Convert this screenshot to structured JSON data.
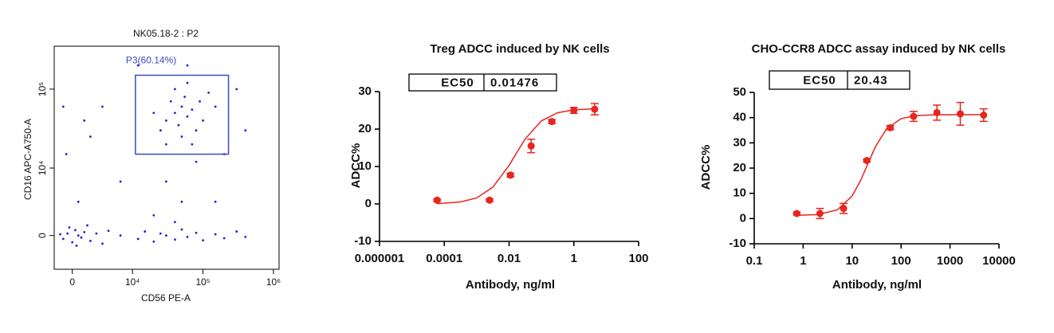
{
  "chart_data": [
    {
      "type": "flow",
      "title": "NK05.18-2 : P2",
      "xlabel": "CD56 PE-A",
      "ylabel": "CD16 APC-A750-A",
      "xscale": "biex",
      "yscale": "biex",
      "color": "#1f1fd6",
      "xlim": [
        -3000,
        1200000
      ],
      "ylim": [
        -5000,
        350000
      ],
      "xticks": [
        0,
        {
          "value": 10000,
          "label": "10⁴"
        },
        {
          "value": 100000,
          "label": "10⁵"
        },
        {
          "value": 1000000,
          "label": "10⁶"
        }
      ],
      "yticks": [
        0,
        {
          "value": 10000,
          "label": "10⁴"
        },
        {
          "value": 100000,
          "label": "10⁵"
        }
      ],
      "gate": {
        "label": "P3(60.14%)",
        "color": "#3b4bc8",
        "x": [
          11000,
          230000
        ],
        "y": [
          15000,
          150000
        ]
      },
      "x": [
        -1500,
        -800,
        0,
        500,
        1000,
        1500,
        2000,
        -500,
        3000,
        4000,
        5000,
        6000,
        8000,
        12000,
        15000,
        20000,
        25000,
        30000,
        40000,
        50000,
        60000,
        80000,
        100000,
        150000,
        200000,
        300000,
        400000,
        -2000,
        700,
        2500,
        30000,
        40000,
        50000,
        60000,
        45000,
        70000,
        35000,
        55000,
        25000,
        80000,
        90000,
        40000,
        60000,
        20000,
        100000,
        150000,
        50000,
        30000,
        120000,
        70000,
        30000,
        50000,
        20000,
        80000,
        40000,
        -1000,
        2000,
        5000,
        8000,
        1000,
        200000,
        400000,
        300000,
        12000,
        60000,
        -1500,
        3000,
        150000
      ],
      "values": [
        -500,
        300,
        -1000,
        800,
        0,
        -300,
        500,
        1200,
        -800,
        300,
        -1200,
        700,
        0,
        -500,
        600,
        -900,
        300,
        0,
        -600,
        900,
        -200,
        400,
        -700,
        200,
        -400,
        600,
        -200,
        200,
        -1500,
        1500,
        40000,
        50000,
        60000,
        45000,
        35000,
        55000,
        70000,
        80000,
        30000,
        30000,
        70000,
        100000,
        120000,
        50000,
        40000,
        60000,
        25000,
        20000,
        90000,
        20000,
        8000,
        5000,
        3000,
        12000,
        2000,
        15000,
        40000,
        60000,
        8000,
        5000,
        15000,
        30000,
        100000,
        200000,
        200000,
        60000,
        25000,
        5000
      ]
    },
    {
      "type": "dose",
      "title": "Treg ADCC induced by NK cells",
      "xlabel": "Antibody, ng/ml",
      "ylabel": "ADCC%",
      "xscale": "log",
      "color": "#e8251f",
      "ec50": {
        "label": "EC50",
        "value": 0.01476
      },
      "xlim": [
        1e-06,
        100
      ],
      "ylim": [
        -10,
        30
      ],
      "xticks": [
        1e-06,
        0.0001,
        0.01,
        1,
        100
      ],
      "yticks": [
        -10,
        0,
        10,
        20,
        30
      ],
      "x": [
        6e-05,
        0.0025,
        0.011,
        0.048,
        0.21,
        1,
        4.4
      ],
      "values": [
        1,
        1,
        7.7,
        15.5,
        22,
        25,
        25.3
      ],
      "errors": [
        0.3,
        0.3,
        0.5,
        1.8,
        0.5,
        0.8,
        1.5
      ],
      "fit": {
        "x": [
          6e-05,
          0.000316,
          0.001,
          0.00316,
          0.01,
          0.01476,
          0.0316,
          0.1,
          0.316,
          1,
          4.4
        ],
        "y": [
          0.06,
          0.53,
          1.6,
          4.49,
          10.28,
          12.75,
          17.38,
          22.2,
          24.36,
          25.13,
          25.42
        ]
      }
    },
    {
      "type": "dose",
      "title": "CHO-CCR8 ADCC assay induced by NK cells",
      "xlabel": "Antibody, ng/ml",
      "ylabel": "ADCC%",
      "xscale": "log",
      "color": "#e8251f",
      "ec50": {
        "label": "EC50",
        "value": 20.43
      },
      "xlim": [
        0.1,
        10000
      ],
      "ylim": [
        -10,
        50
      ],
      "xticks": [
        0.1,
        1,
        10,
        100,
        1000,
        10000
      ],
      "yticks": [
        -10,
        0,
        10,
        20,
        30,
        40,
        50
      ],
      "x": [
        0.74,
        2.2,
        6.7,
        20,
        60,
        180,
        540,
        1620,
        4860
      ],
      "values": [
        2,
        2,
        4,
        23,
        36,
        40.5,
        42,
        41.5,
        41
      ],
      "errors": [
        0.5,
        2,
        2,
        0.5,
        0.8,
        2,
        3,
        4.5,
        2.5
      ],
      "fit": {
        "x": [
          0.74,
          2,
          5,
          10,
          15,
          20.43,
          30,
          50,
          100,
          200,
          500,
          4860
        ],
        "y": [
          1.25,
          1.58,
          3.46,
          8.94,
          15.21,
          21.2,
          28.52,
          35.48,
          39.6,
          40.79,
          41.13,
          41.2
        ]
      }
    }
  ]
}
